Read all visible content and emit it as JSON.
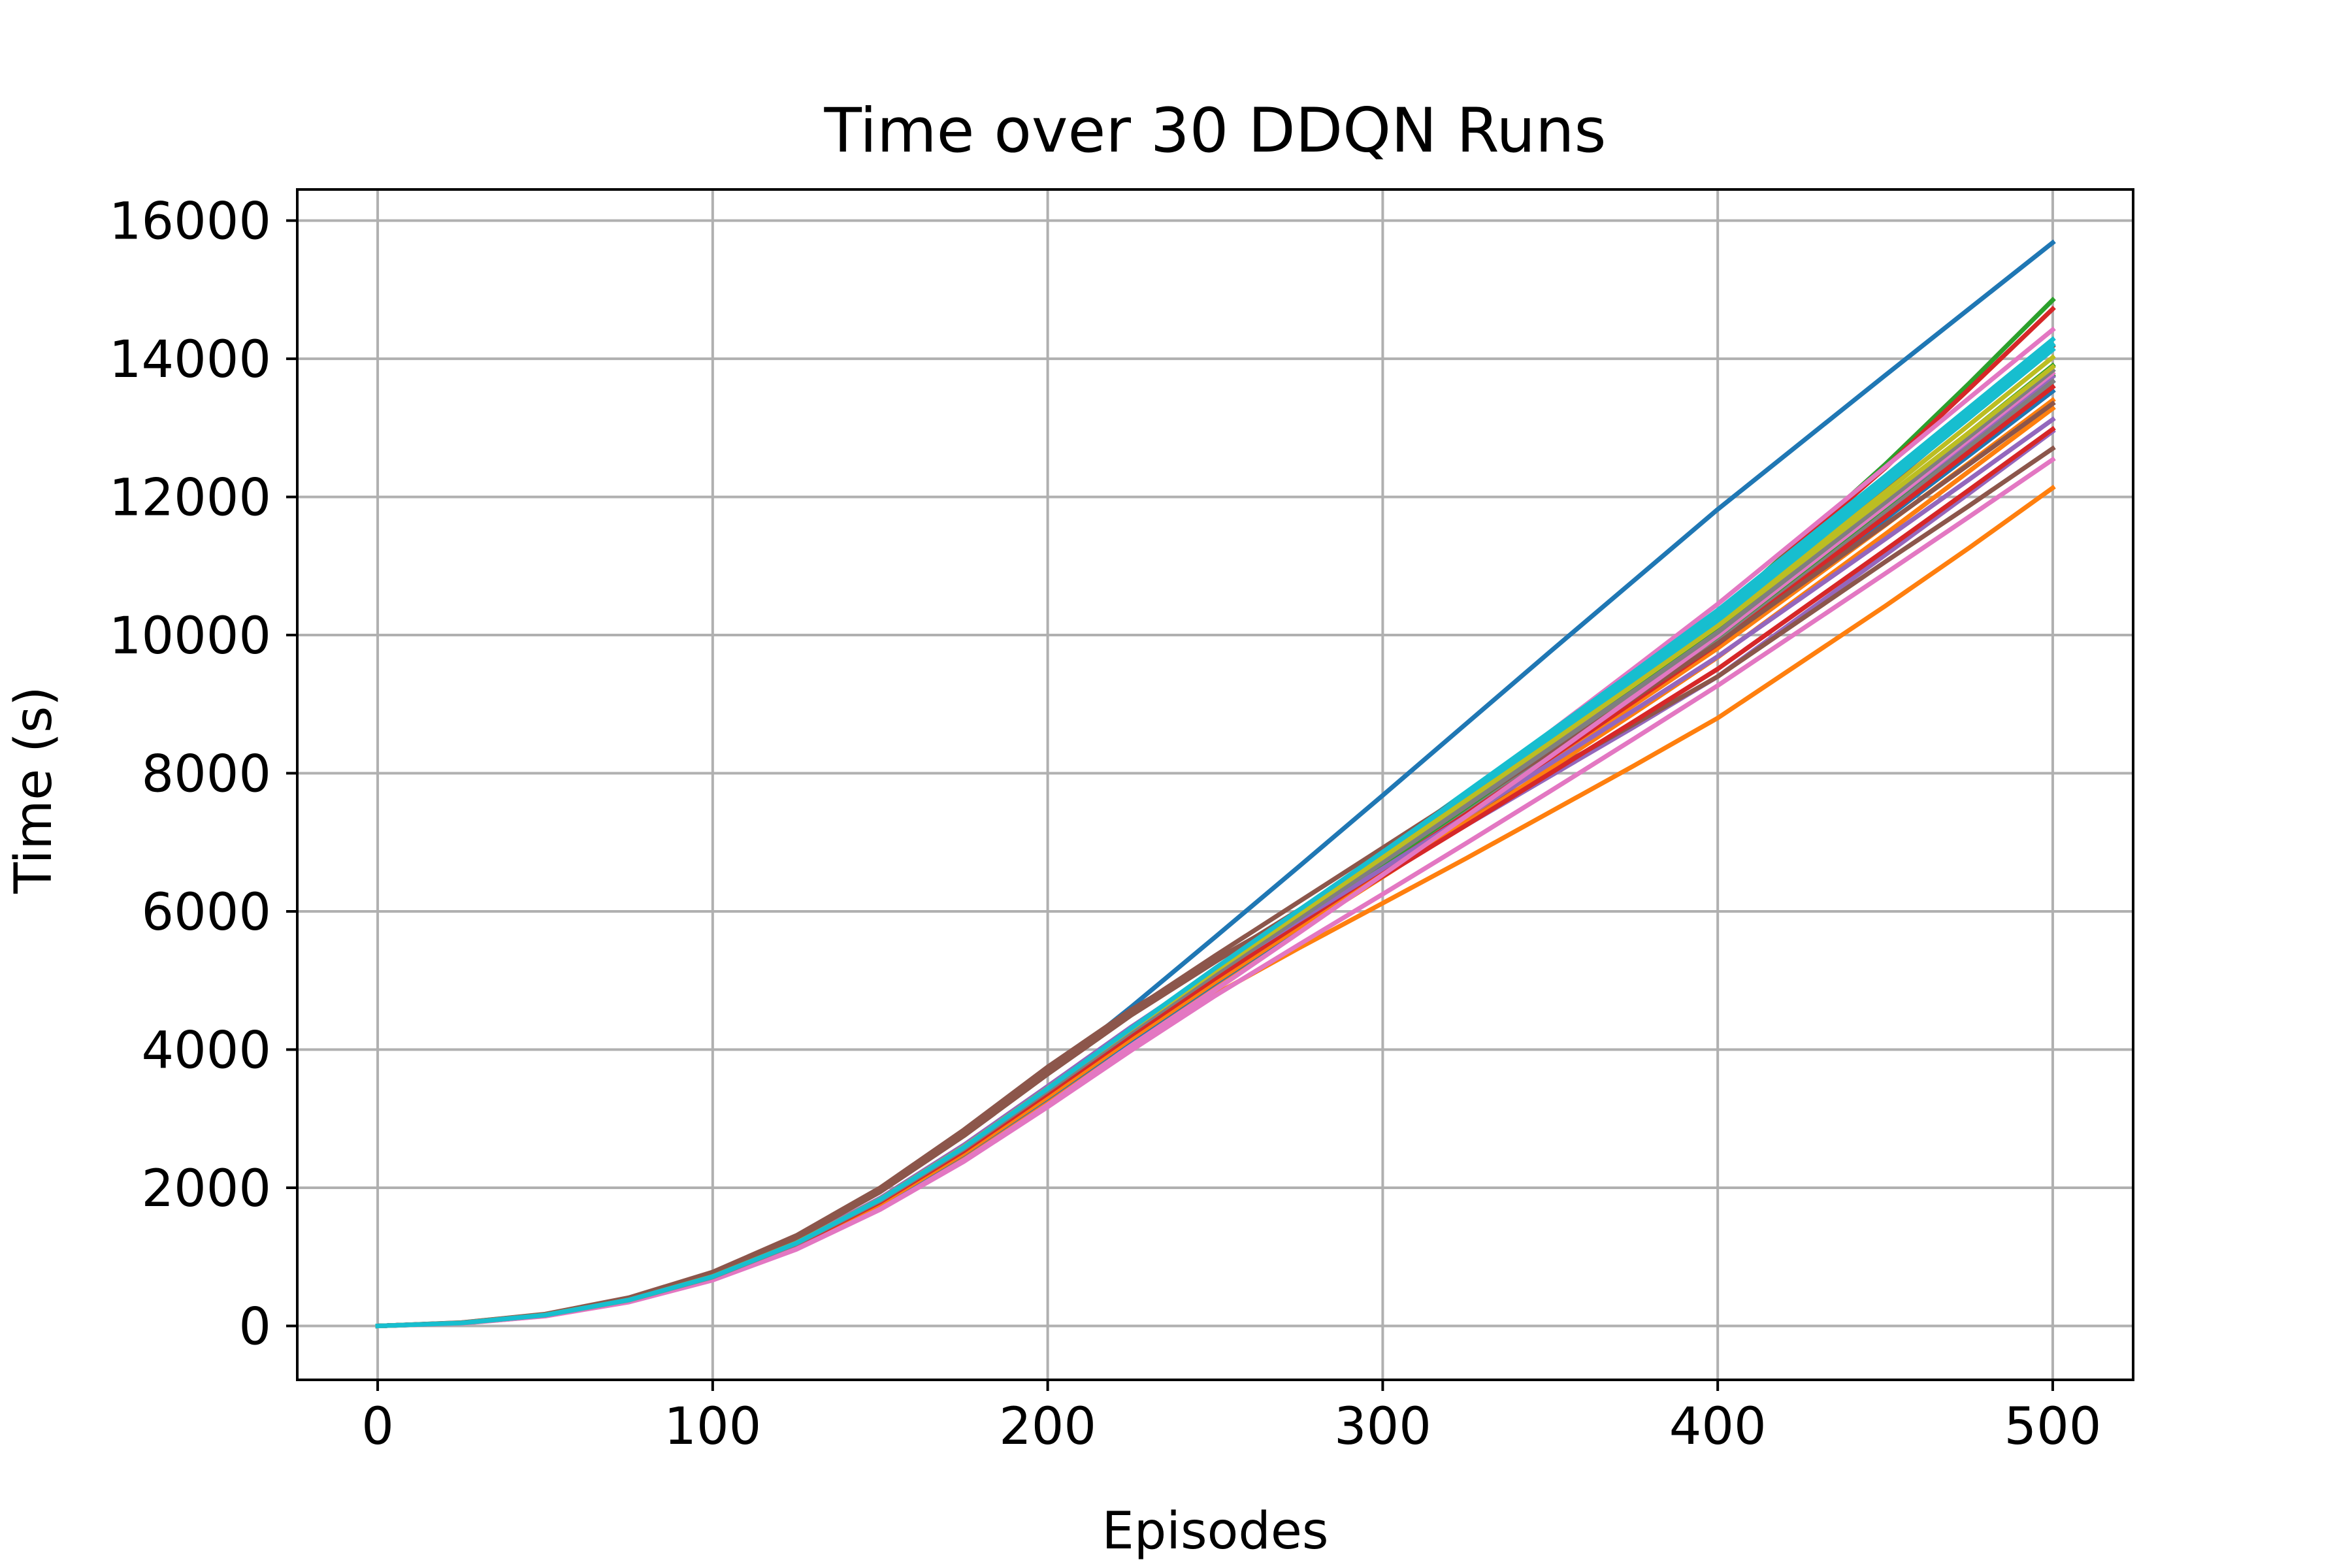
{
  "chart_data": {
    "type": "line",
    "title": "Time over 30 DDQN Runs",
    "xlabel": "Episodes",
    "ylabel": "Time (s)",
    "xlim": [
      -24,
      524
    ],
    "ylim": [
      -780,
      16450
    ],
    "xticks": [
      0,
      100,
      200,
      300,
      400,
      500
    ],
    "yticks": [
      0,
      2000,
      4000,
      6000,
      8000,
      10000,
      12000,
      14000,
      16000
    ],
    "grid": true,
    "legend": false,
    "x": [
      0,
      25,
      50,
      75,
      100,
      125,
      150,
      175,
      200,
      225,
      250,
      275,
      300,
      325,
      350,
      375,
      400,
      425,
      450,
      475,
      500
    ],
    "series": [
      {
        "color": "#1f77b4",
        "values": [
          0,
          45,
          160,
          390,
          740,
          1260,
          1950,
          2760,
          3650,
          4620,
          5630,
          6650,
          7680,
          8720,
          9760,
          10790,
          11820,
          12790,
          13760,
          14720,
          15680
        ]
      },
      {
        "color": "#ff7f0e",
        "values": [
          0,
          40,
          150,
          360,
          680,
          1140,
          1740,
          2460,
          3250,
          4050,
          4800,
          5470,
          6120,
          6770,
          7440,
          8110,
          8800,
          9610,
          10420,
          11260,
          12130
        ]
      },
      {
        "color": "#2ca02c",
        "values": [
          0,
          42,
          155,
          370,
          700,
          1180,
          1800,
          2540,
          3370,
          4220,
          5030,
          5830,
          6640,
          7490,
          8390,
          9320,
          10300,
          11380,
          12470,
          13640,
          14850
        ]
      },
      {
        "color": "#d62728",
        "values": [
          0,
          41,
          152,
          365,
          690,
          1160,
          1770,
          2500,
          3320,
          4180,
          5010,
          5830,
          6660,
          7520,
          8410,
          9340,
          10300,
          11360,
          12420,
          13560,
          14720
        ]
      },
      {
        "color": "#9467bd",
        "values": [
          0,
          44,
          160,
          380,
          720,
          1210,
          1850,
          2620,
          3470,
          4330,
          5140,
          5860,
          6550,
          7250,
          7960,
          8670,
          9400,
          10280,
          11160,
          12050,
          12950
        ]
      },
      {
        "color": "#8c564b",
        "values": [
          0,
          48,
          172,
          410,
          780,
          1310,
          2000,
          2840,
          3750,
          4580,
          5300,
          5990,
          6670,
          7350,
          8030,
          8710,
          9400,
          10230,
          11060,
          11870,
          12700
        ]
      },
      {
        "color": "#e377c2",
        "values": [
          0,
          38,
          145,
          350,
          670,
          1120,
          1700,
          2400,
          3200,
          4060,
          4920,
          5830,
          6760,
          7680,
          8600,
          9520,
          10450,
          11440,
          12430,
          13430,
          14420
        ]
      },
      {
        "color": "#7f7f7f",
        "values": [
          0,
          42,
          155,
          372,
          705,
          1185,
          1810,
          2560,
          3400,
          4250,
          5080,
          5880,
          6690,
          7500,
          8320,
          9140,
          9980,
          10920,
          11860,
          12800,
          13750
        ]
      },
      {
        "color": "#bcbd22",
        "values": [
          0,
          43,
          158,
          375,
          712,
          1195,
          1825,
          2580,
          3420,
          4270,
          5100,
          5910,
          6720,
          7540,
          8360,
          9190,
          10030,
          10990,
          11950,
          12920,
          13900
        ]
      },
      {
        "color": "#17becf",
        "values": [
          0,
          42,
          156,
          374,
          710,
          1190,
          1820,
          2570,
          3420,
          4290,
          5150,
          6000,
          6860,
          7730,
          8600,
          9470,
          10360,
          11330,
          12300,
          13290,
          14280
        ]
      },
      {
        "color": "#1f77b4",
        "values": [
          0,
          41,
          153,
          366,
          695,
          1170,
          1785,
          2520,
          3345,
          4190,
          5010,
          5800,
          6590,
          7390,
          8200,
          9020,
          9850,
          10800,
          11750,
          12710,
          13670
        ]
      },
      {
        "color": "#ff7f0e",
        "values": [
          0,
          40,
          150,
          362,
          688,
          1155,
          1765,
          2495,
          3310,
          4140,
          4950,
          5730,
          6500,
          7280,
          8070,
          8870,
          9680,
          10570,
          11460,
          12370,
          13280
        ]
      },
      {
        "color": "#2ca02c",
        "values": [
          0,
          42,
          154,
          368,
          698,
          1172,
          1790,
          2530,
          3355,
          4200,
          5030,
          5830,
          6630,
          7440,
          8260,
          9090,
          9930,
          10880,
          11830,
          12790,
          13760
        ]
      },
      {
        "color": "#d62728",
        "values": [
          0,
          43,
          157,
          373,
          706,
          1186,
          1808,
          2552,
          3385,
          4220,
          5020,
          5770,
          6510,
          7250,
          8000,
          8750,
          9510,
          10370,
          11230,
          12100,
          12980
        ]
      },
      {
        "color": "#9467bd",
        "values": [
          0,
          44,
          161,
          382,
          722,
          1212,
          1848,
          2612,
          3460,
          4320,
          5160,
          5960,
          6760,
          7570,
          8380,
          9200,
          10030,
          10950,
          11870,
          12800,
          13740
        ]
      },
      {
        "color": "#8c564b",
        "values": [
          0,
          47,
          168,
          400,
          760,
          1280,
          1960,
          2780,
          3680,
          4560,
          5360,
          6140,
          6920,
          7700,
          8500,
          9320,
          10150,
          11140,
          12140,
          13160,
          14180
        ]
      },
      {
        "color": "#e377c2",
        "values": [
          0,
          37,
          142,
          345,
          662,
          1108,
          1685,
          2380,
          3170,
          3990,
          4780,
          5520,
          6250,
          6990,
          7740,
          8500,
          9270,
          10080,
          10890,
          11710,
          12540
        ]
      },
      {
        "color": "#7f7f7f",
        "values": [
          0,
          42,
          155,
          371,
          703,
          1182,
          1805,
          2552,
          3390,
          4240,
          5060,
          5850,
          6640,
          7440,
          8250,
          9070,
          9900,
          10830,
          11770,
          12720,
          13670
        ]
      },
      {
        "color": "#bcbd22",
        "values": [
          0,
          43,
          158,
          376,
          714,
          1198,
          1828,
          2585,
          3430,
          4290,
          5130,
          5950,
          6770,
          7600,
          8440,
          9290,
          10150,
          11110,
          12070,
          13040,
          14020
        ]
      },
      {
        "color": "#17becf",
        "values": [
          0,
          43,
          157,
          376,
          712,
          1196,
          1826,
          2580,
          3430,
          4300,
          5160,
          5990,
          6820,
          7660,
          8500,
          9350,
          10210,
          11180,
          12160,
          13140,
          14130
        ]
      },
      {
        "color": "#1f77b4",
        "values": [
          0,
          40,
          150,
          360,
          685,
          1150,
          1758,
          2488,
          3300,
          4140,
          4960,
          5760,
          6560,
          7370,
          8190,
          9020,
          9860,
          10770,
          11680,
          12600,
          13530
        ]
      },
      {
        "color": "#ff7f0e",
        "values": [
          0,
          41,
          151,
          362,
          688,
          1156,
          1766,
          2498,
          3315,
          4160,
          4980,
          5770,
          6560,
          7360,
          8170,
          8990,
          9810,
          10700,
          11590,
          12490,
          13400
        ]
      },
      {
        "color": "#2ca02c",
        "values": [
          0,
          42,
          155,
          370,
          701,
          1178,
          1798,
          2540,
          3370,
          4220,
          5050,
          5860,
          6680,
          7510,
          8350,
          9200,
          10060,
          11010,
          11960,
          12930,
          13900
        ]
      },
      {
        "color": "#d62728",
        "values": [
          0,
          42,
          154,
          369,
          700,
          1175,
          1795,
          2535,
          3365,
          4210,
          5030,
          5820,
          6610,
          7410,
          8220,
          9040,
          9870,
          10790,
          11710,
          12650,
          13590
        ]
      },
      {
        "color": "#9467bd",
        "values": [
          0,
          44,
          160,
          380,
          720,
          1208,
          1842,
          2605,
          3450,
          4300,
          5110,
          5870,
          6620,
          7380,
          8140,
          8910,
          9690,
          10540,
          11390,
          12250,
          13120
        ]
      },
      {
        "color": "#8c564b",
        "values": [
          0,
          46,
          166,
          396,
          752,
          1266,
          1940,
          2752,
          3645,
          4500,
          5270,
          6020,
          6780,
          7540,
          8310,
          9090,
          9880,
          10740,
          11600,
          12470,
          13350
        ]
      },
      {
        "color": "#e377c2",
        "values": [
          0,
          38,
          144,
          348,
          666,
          1114,
          1693,
          2392,
          3185,
          4020,
          4860,
          5690,
          6530,
          7380,
          8240,
          9110,
          9990,
          10930,
          11870,
          12830,
          13790
        ]
      },
      {
        "color": "#7f7f7f",
        "values": [
          0,
          42,
          156,
          373,
          708,
          1188,
          1814,
          2565,
          3405,
          4260,
          5090,
          5900,
          6710,
          7530,
          8360,
          9190,
          10040,
          10980,
          11920,
          12870,
          13830
        ]
      },
      {
        "color": "#bcbd22",
        "values": [
          0,
          43,
          159,
          377,
          716,
          1202,
          1834,
          2592,
          3440,
          4300,
          5140,
          5960,
          6780,
          7610,
          8440,
          9280,
          10130,
          11060,
          11990,
          12930,
          13880
        ]
      },
      {
        "color": "#17becf",
        "values": [
          0,
          43,
          158,
          377,
          714,
          1199,
          1830,
          2586,
          3436,
          4310,
          5180,
          6020,
          6860,
          7710,
          8560,
          9420,
          10290,
          11260,
          12230,
          13210,
          14200
        ]
      }
    ]
  }
}
